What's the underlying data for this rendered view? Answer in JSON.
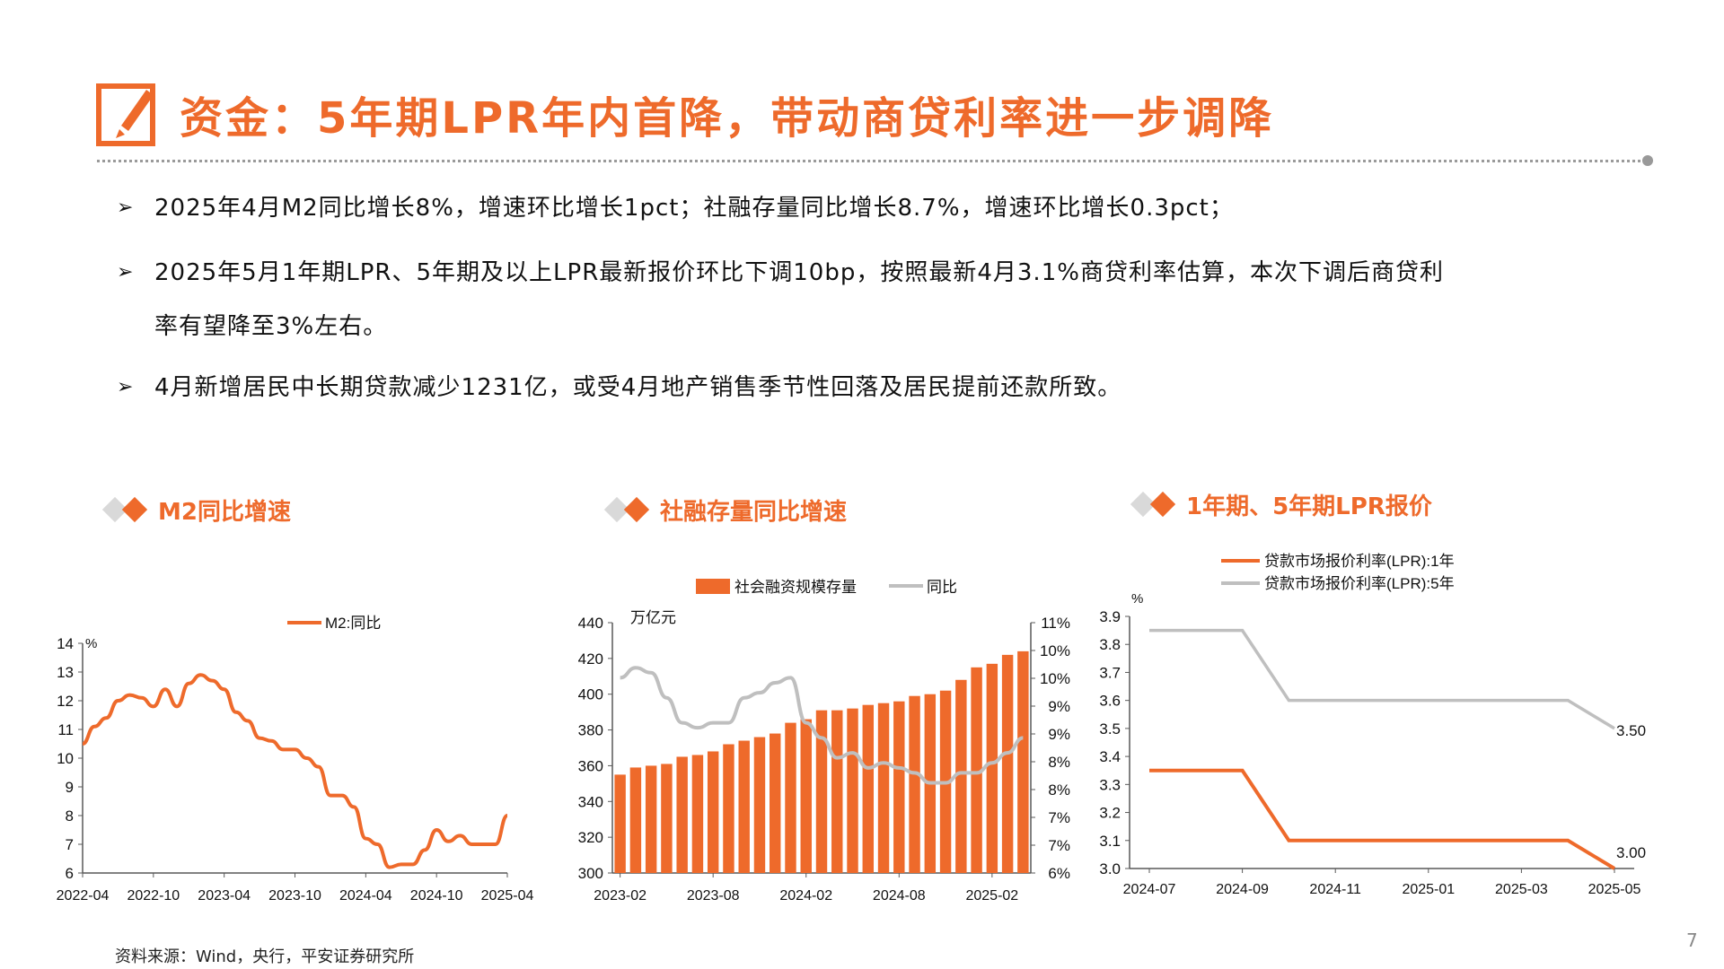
{
  "header": {
    "title": "资金：5年期LPR年内首降，带动商贷利率进一步调降",
    "bullets": [
      "2025年4月M2同比增长8%，增速环比增长1pct；社融存量同比增长8.7%，增速环比增长0.3pct；",
      "2025年5月1年期LPR、5年期及以上LPR最新报价环比下调10bp，按照最新4月3.1%商贷利率估算，本次下调后商贷利",
      "率有望降至3%左右。",
      "4月新增居民中长期贷款减少1231亿，或受4月地产销售季节性回落及居民提前还款所致。"
    ]
  },
  "sections": {
    "m2": "M2同比增速",
    "tsf": "社融存量同比增速",
    "lpr": "1年期、5年期LPR报价"
  },
  "footer": {
    "source": "资料来源：Wind，央行，平安证券研究所",
    "page": "7"
  },
  "colors": {
    "accent": "#ee6a2b",
    "gray_line": "#bfbfbf",
    "axis": "#595959"
  },
  "icons": {
    "title_icon": "pencil-edit-icon",
    "bullet_icon": "arrow-right-icon",
    "section_icon": "diamond-icon"
  },
  "chart_data": [
    {
      "type": "line",
      "unit": "%",
      "legend": [
        "M2:同比"
      ],
      "x_ticks": [
        "2022-04",
        "2022-10",
        "2023-04",
        "2023-10",
        "2024-04",
        "2024-10",
        "2025-04"
      ],
      "ylim": [
        6,
        14
      ],
      "y_ticks": [
        "14",
        "13",
        "12",
        "11",
        "10",
        "9",
        "8",
        "7",
        "6"
      ],
      "x": [
        "2022-04",
        "2022-05",
        "2022-06",
        "2022-07",
        "2022-08",
        "2022-09",
        "2022-10",
        "2022-11",
        "2022-12",
        "2023-01",
        "2023-02",
        "2023-03",
        "2023-04",
        "2023-05",
        "2023-06",
        "2023-07",
        "2023-08",
        "2023-09",
        "2023-10",
        "2023-11",
        "2023-12",
        "2024-01",
        "2024-02",
        "2024-03",
        "2024-04",
        "2024-05",
        "2024-06",
        "2024-07",
        "2024-08",
        "2024-09",
        "2024-10",
        "2024-11",
        "2024-12",
        "2025-01",
        "2025-02",
        "2025-03",
        "2025-04"
      ],
      "series": [
        {
          "name": "M2:同比",
          "values": [
            10.5,
            11.1,
            11.4,
            12.0,
            12.2,
            12.1,
            11.8,
            12.4,
            11.8,
            12.6,
            12.9,
            12.7,
            12.4,
            11.6,
            11.3,
            10.7,
            10.6,
            10.3,
            10.3,
            10.0,
            9.7,
            8.7,
            8.7,
            8.3,
            7.2,
            7.0,
            6.2,
            6.3,
            6.3,
            6.8,
            7.5,
            7.1,
            7.3,
            7.0,
            7.0,
            7.0,
            8.0
          ]
        }
      ]
    },
    {
      "type": "bar+line",
      "unit_left": "万亿元",
      "legend": [
        "社会融资规模存量",
        "同比"
      ],
      "x_ticks": [
        "2023-02",
        "2023-08",
        "2024-02",
        "2024-08",
        "2025-02"
      ],
      "y_left_ticks": [
        "440",
        "420",
        "400",
        "380",
        "360",
        "340",
        "320",
        "300"
      ],
      "y_right_ticks": [
        "11%",
        "10%",
        "10%",
        "9%",
        "9%",
        "8%",
        "8%",
        "7%",
        "7%",
        "6%"
      ],
      "ylim_left": [
        300,
        440
      ],
      "ylim_right": [
        6,
        11
      ],
      "x": [
        "2023-02",
        "2023-03",
        "2023-04",
        "2023-05",
        "2023-06",
        "2023-07",
        "2023-08",
        "2023-09",
        "2023-10",
        "2023-11",
        "2023-12",
        "2024-01",
        "2024-02",
        "2024-03",
        "2024-04",
        "2024-05",
        "2024-06",
        "2024-07",
        "2024-08",
        "2024-09",
        "2024-10",
        "2024-11",
        "2024-12",
        "2025-01",
        "2025-02",
        "2025-03",
        "2025-04"
      ],
      "series": [
        {
          "name": "社会融资规模存量",
          "kind": "bar",
          "values": [
            355,
            359,
            360,
            361,
            365,
            366,
            368,
            372,
            374,
            376,
            378,
            384,
            386,
            391,
            391,
            392,
            394,
            395,
            396,
            399,
            400,
            402,
            408,
            415,
            417,
            422,
            424
          ]
        },
        {
          "name": "同比",
          "kind": "line",
          "values": [
            9.9,
            10.1,
            10.0,
            9.5,
            9.0,
            8.9,
            9.0,
            9.0,
            9.5,
            9.6,
            9.8,
            9.9,
            9.0,
            8.7,
            8.3,
            8.4,
            8.1,
            8.2,
            8.1,
            8.0,
            7.8,
            7.8,
            8.0,
            8.0,
            8.2,
            8.4,
            8.7
          ]
        }
      ]
    },
    {
      "type": "line",
      "unit": "%",
      "legend": [
        "贷款市场报价利率(LPR):1年",
        "贷款市场报价利率(LPR):5年"
      ],
      "x_ticks": [
        "2024-07",
        "2024-09",
        "2024-11",
        "2025-01",
        "2025-03",
        "2025-05"
      ],
      "y_ticks": [
        "3.9",
        "3.8",
        "3.7",
        "3.6",
        "3.5",
        "3.4",
        "3.3",
        "3.2",
        "3.1",
        "3.0"
      ],
      "ylim": [
        3.0,
        3.9
      ],
      "x": [
        "2024-07",
        "2024-08",
        "2024-09",
        "2024-10",
        "2024-11",
        "2024-12",
        "2025-01",
        "2025-02",
        "2025-03",
        "2025-04",
        "2025-05"
      ],
      "series": [
        {
          "name": "贷款市场报价利率(LPR):1年",
          "values": [
            3.35,
            3.35,
            3.35,
            3.1,
            3.1,
            3.1,
            3.1,
            3.1,
            3.1,
            3.1,
            3.0
          ]
        },
        {
          "name": "贷款市场报价利率(LPR):5年",
          "values": [
            3.85,
            3.85,
            3.85,
            3.6,
            3.6,
            3.6,
            3.6,
            3.6,
            3.6,
            3.6,
            3.5
          ]
        }
      ],
      "annotations": [
        "3.50",
        "3.00"
      ]
    }
  ]
}
